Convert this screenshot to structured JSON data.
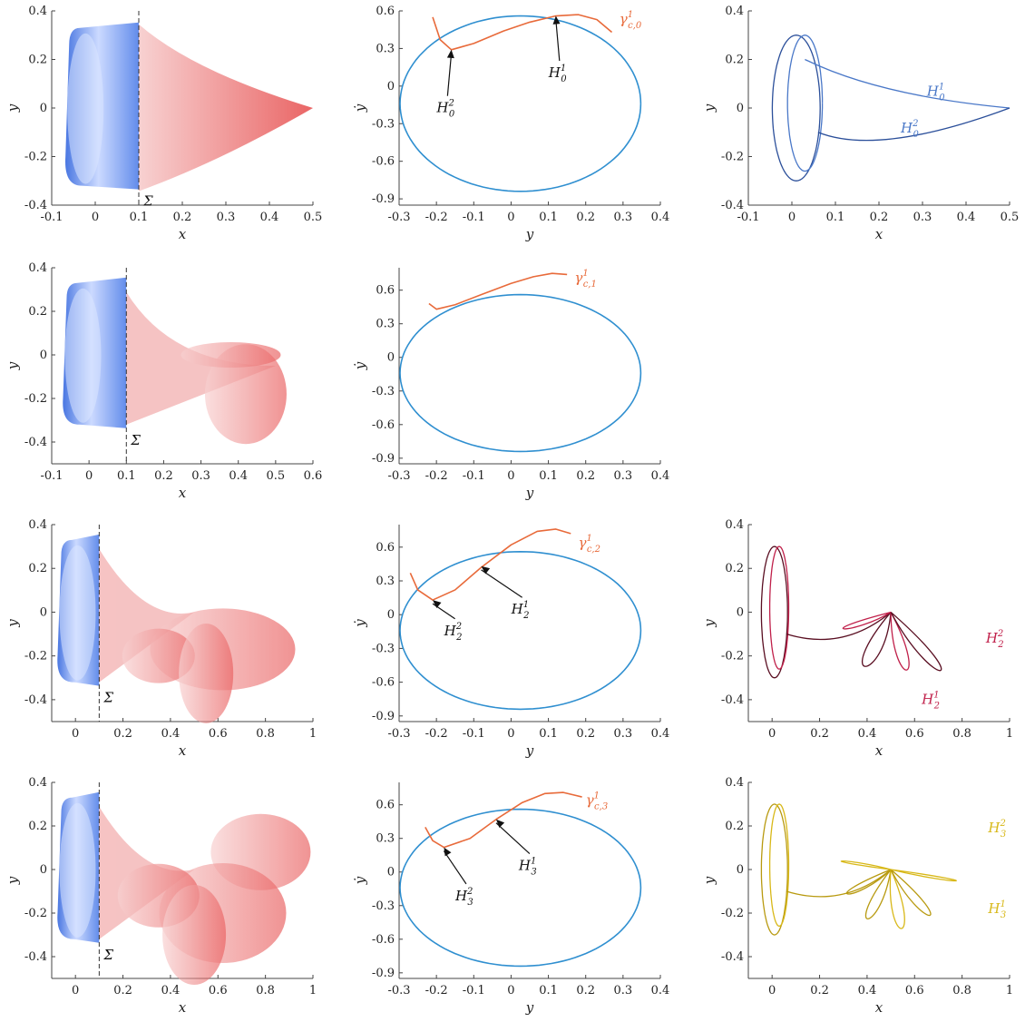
{
  "colors": {
    "blue_surface": "#4f7fe0",
    "red_surface": "#e85a5a",
    "periodic_orbit": "#2f8fd0",
    "gamma_curve": "#e86a3a",
    "homoclinic_0": "#4a78c8",
    "homoclinic_2": "#c0204a",
    "homoclinic_3": "#d8b818"
  },
  "chart_data": [
    {
      "id": "r1c1",
      "type": "area",
      "xlabel": "x",
      "ylabel": "y",
      "xlim": [
        -0.1,
        0.5
      ],
      "ylim": [
        -0.4,
        0.4
      ],
      "xticks": [
        "-0.1",
        "0",
        "0.1",
        "0.2",
        "0.3",
        "0.4",
        "0.5"
      ],
      "yticks": [
        "0.4",
        "0.2",
        "0",
        "-0.2",
        "-0.4"
      ],
      "section_x": 0.1,
      "section_label": "Σ",
      "manifold_tip": [
        0.5,
        0.0
      ]
    },
    {
      "id": "r1c2",
      "type": "line",
      "xlabel": "y",
      "ylabel": "ẏ",
      "xlim": [
        -0.3,
        0.4
      ],
      "ylim": [
        -0.95,
        0.6
      ],
      "xticks": [
        "-0.3",
        "-0.2",
        "-0.1",
        "0",
        "0.1",
        "0.2",
        "0.3",
        "0.4"
      ],
      "yticks": [
        "0.6",
        "0.3",
        "0",
        "-0.3",
        "-0.6",
        "-0.9"
      ],
      "series": [
        {
          "name": "",
          "x": [
            -0.21,
            -0.19,
            -0.16,
            -0.1,
            -0.02,
            0.05,
            0.12,
            0.18,
            0.23,
            0.27
          ],
          "y": [
            0.55,
            0.37,
            0.29,
            0.34,
            0.44,
            0.51,
            0.56,
            0.57,
            0.53,
            0.43
          ]
        }
      ],
      "annotations": [
        {
          "sym": "H",
          "sup": "2",
          "sub": "0",
          "pt": [
            -0.16,
            0.29
          ],
          "lbl": [
            -0.18,
            -0.18
          ]
        },
        {
          "sym": "H",
          "sup": "1",
          "sub": "0",
          "pt": [
            0.12,
            0.56
          ],
          "lbl": [
            0.12,
            0.1
          ]
        }
      ],
      "curve_label": {
        "sym": "γ",
        "sup": "1",
        "sub": "c,0",
        "at": [
          0.29,
          0.5
        ]
      }
    },
    {
      "id": "r1c3",
      "type": "line",
      "xlabel": "x",
      "ylabel": "y",
      "xlim": [
        -0.1,
        0.5
      ],
      "ylim": [
        -0.4,
        0.4
      ],
      "xticks": [
        "-0.1",
        "0",
        "0.1",
        "0.2",
        "0.3",
        "0.4",
        "0.5"
      ],
      "yticks": [
        "0.4",
        "0.2",
        "0",
        "-0.2",
        "-0.4"
      ],
      "labels": [
        {
          "sym": "H",
          "sup": "1",
          "sub": "0",
          "at": [
            0.31,
            0.05
          ]
        },
        {
          "sym": "H",
          "sup": "2",
          "sub": "0",
          "at": [
            0.25,
            -0.1
          ]
        }
      ]
    },
    {
      "id": "r2c1",
      "type": "area",
      "xlabel": "x",
      "ylabel": "y",
      "xlim": [
        -0.1,
        0.6
      ],
      "ylim": [
        -0.5,
        0.4
      ],
      "xticks": [
        "-0.1",
        "0",
        "0.1",
        "0.2",
        "0.3",
        "0.4",
        "0.5",
        "0.6"
      ],
      "yticks": [
        "0.4",
        "0.2",
        "0",
        "-0.2",
        "-0.4"
      ],
      "section_x": 0.1,
      "section_label": "Σ",
      "manifold_tip": [
        0.5,
        -0.05
      ]
    },
    {
      "id": "r2c2",
      "type": "line",
      "xlabel": "y",
      "ylabel": "ẏ",
      "xlim": [
        -0.3,
        0.4
      ],
      "ylim": [
        -0.95,
        0.8
      ],
      "xticks": [
        "-0.3",
        "-0.2",
        "-0.1",
        "0",
        "0.1",
        "0.2",
        "0.3",
        "0.4"
      ],
      "yticks": [
        "0.6",
        "0.3",
        "0",
        "-0.3",
        "-0.6",
        "-0.9"
      ],
      "series": [
        {
          "name": "",
          "x": [
            -0.22,
            -0.2,
            -0.15,
            -0.08,
            0.0,
            0.06,
            0.11,
            0.15
          ],
          "y": [
            0.48,
            0.43,
            0.47,
            0.56,
            0.66,
            0.72,
            0.75,
            0.74
          ]
        }
      ],
      "curve_label": {
        "sym": "γ",
        "sup": "1",
        "sub": "c,1",
        "at": [
          0.17,
          0.67
        ]
      }
    },
    {
      "id": "r3c1",
      "type": "area",
      "xlabel": "x",
      "ylabel": "y",
      "xlim": [
        -0.1,
        1.0
      ],
      "ylim": [
        -0.5,
        0.4
      ],
      "xticks": [
        "0",
        "0.2",
        "0.4",
        "0.6",
        "0.8",
        "1"
      ],
      "yticks": [
        "0.4",
        "0.2",
        "0",
        "-0.2",
        "-0.4"
      ],
      "section_x": 0.1,
      "section_label": "Σ",
      "manifold_tip": [
        0.5,
        0.0
      ]
    },
    {
      "id": "r3c2",
      "type": "line",
      "xlabel": "y",
      "ylabel": "ẏ",
      "xlim": [
        -0.3,
        0.4
      ],
      "ylim": [
        -0.95,
        0.8
      ],
      "xticks": [
        "-0.3",
        "-0.2",
        "-0.1",
        "0",
        "0.1",
        "0.2",
        "0.3",
        "0.4"
      ],
      "yticks": [
        "0.6",
        "0.3",
        "0",
        "-0.3",
        "-0.6",
        "-0.9"
      ],
      "series": [
        {
          "name": "",
          "x": [
            -0.27,
            -0.25,
            -0.21,
            -0.15,
            -0.08,
            0.0,
            0.07,
            0.12,
            0.16
          ],
          "y": [
            0.37,
            0.22,
            0.13,
            0.22,
            0.42,
            0.62,
            0.74,
            0.76,
            0.72
          ]
        }
      ],
      "annotations": [
        {
          "sym": "H",
          "sup": "2",
          "sub": "2",
          "pt": [
            -0.21,
            0.13
          ],
          "lbl": [
            -0.16,
            -0.15
          ]
        },
        {
          "sym": "H",
          "sup": "1",
          "sub": "2",
          "pt": [
            -0.08,
            0.43
          ],
          "lbl": [
            0.02,
            0.04
          ]
        }
      ],
      "curve_label": {
        "sym": "γ",
        "sup": "1",
        "sub": "c,2",
        "at": [
          0.18,
          0.6
        ]
      }
    },
    {
      "id": "r3c3",
      "type": "line",
      "xlabel": "x",
      "ylabel": "y",
      "xlim": [
        -0.1,
        1.0
      ],
      "ylim": [
        -0.5,
        0.4
      ],
      "xticks": [
        "0",
        "0.2",
        "0.4",
        "0.6",
        "0.8",
        "1"
      ],
      "yticks": [
        "0.4",
        "0.2",
        "0",
        "-0.2",
        "-0.4"
      ],
      "labels": [
        {
          "sym": "H",
          "sup": "2",
          "sub": "2",
          "at": [
            0.9,
            -0.14
          ]
        },
        {
          "sym": "H",
          "sup": "1",
          "sub": "2",
          "at": [
            0.63,
            -0.42
          ]
        }
      ]
    },
    {
      "id": "r4c1",
      "type": "area",
      "xlabel": "x",
      "ylabel": "y",
      "xlim": [
        -0.1,
        1.0
      ],
      "ylim": [
        -0.5,
        0.4
      ],
      "xticks": [
        "0",
        "0.2",
        "0.4",
        "0.6",
        "0.8",
        "1"
      ],
      "yticks": [
        "0.4",
        "0.2",
        "0",
        "-0.2",
        "-0.4"
      ],
      "section_x": 0.1,
      "section_label": "Σ",
      "manifold_tip": [
        0.5,
        0.0
      ]
    },
    {
      "id": "r4c2",
      "type": "line",
      "xlabel": "y",
      "ylabel": "ẏ",
      "xlim": [
        -0.3,
        0.4
      ],
      "ylim": [
        -0.95,
        0.8
      ],
      "xticks": [
        "-0.3",
        "-0.2",
        "-0.1",
        "0",
        "0.1",
        "0.2",
        "0.3",
        "0.4"
      ],
      "yticks": [
        "0.6",
        "0.3",
        "0",
        "-0.3",
        "-0.6",
        "-0.9"
      ],
      "series": [
        {
          "name": "",
          "x": [
            -0.23,
            -0.21,
            -0.18,
            -0.11,
            -0.04,
            0.03,
            0.09,
            0.14,
            0.19
          ],
          "y": [
            0.4,
            0.28,
            0.22,
            0.3,
            0.47,
            0.62,
            0.7,
            0.71,
            0.67
          ]
        }
      ],
      "annotations": [
        {
          "sym": "H",
          "sup": "2",
          "sub": "3",
          "pt": [
            -0.18,
            0.22
          ],
          "lbl": [
            -0.13,
            -0.22
          ]
        },
        {
          "sym": "H",
          "sup": "1",
          "sub": "3",
          "pt": [
            -0.04,
            0.47
          ],
          "lbl": [
            0.04,
            0.05
          ]
        }
      ],
      "curve_label": {
        "sym": "γ",
        "sup": "1",
        "sub": "c,3",
        "at": [
          0.2,
          0.6
        ]
      }
    },
    {
      "id": "r4c3",
      "type": "line",
      "xlabel": "x",
      "ylabel": "y",
      "xlim": [
        -0.1,
        1.0
      ],
      "ylim": [
        -0.5,
        0.4
      ],
      "xticks": [
        "0",
        "0.2",
        "0.4",
        "0.6",
        "0.8",
        "1"
      ],
      "yticks": [
        "0.4",
        "0.2",
        "0",
        "-0.2",
        "-0.4"
      ],
      "labels": [
        {
          "sym": "H",
          "sup": "2",
          "sub": "3",
          "at": [
            0.91,
            0.17
          ]
        },
        {
          "sym": "H",
          "sup": "1",
          "sub": "3",
          "at": [
            0.91,
            -0.2
          ]
        }
      ]
    }
  ]
}
